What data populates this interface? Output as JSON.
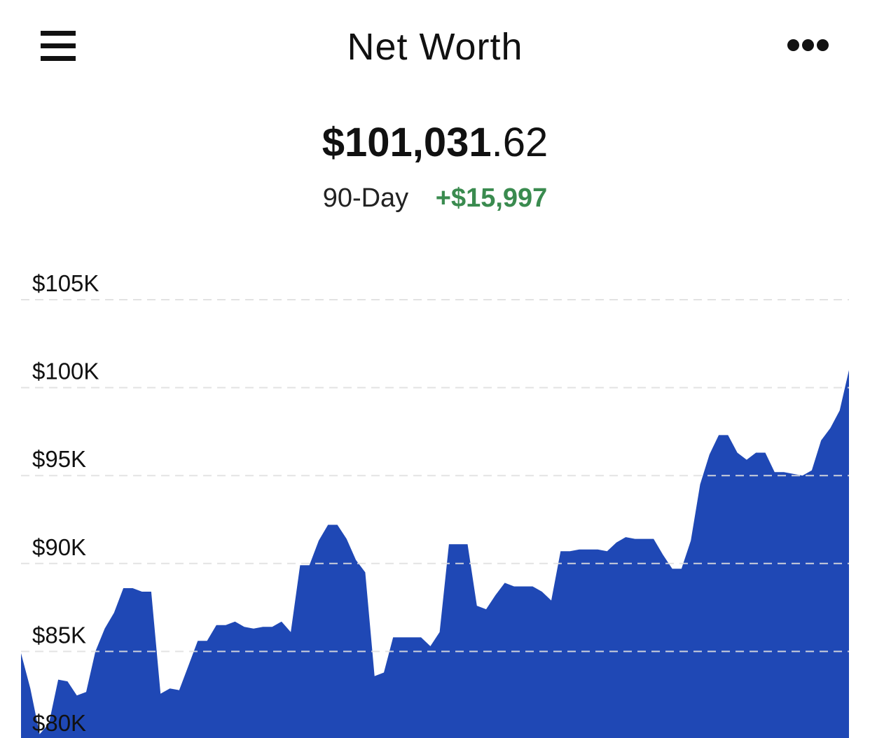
{
  "header": {
    "title": "Net Worth",
    "menu_icon": "hamburger-menu-icon",
    "more_icon": "more-options-icon"
  },
  "summary": {
    "balance_whole": "$101,031",
    "balance_cents": ".62",
    "period_label": "90-Day",
    "change": "+$15,997",
    "change_color": "#3a8b4f"
  },
  "colors": {
    "area_fill": "#1f48b5",
    "gridline": "#e0e0e0"
  },
  "chart_data": {
    "type": "area",
    "y_ticks": [
      80000,
      85000,
      90000,
      95000,
      100000,
      105000
    ],
    "y_tick_labels": [
      "$80K",
      "$85K",
      "$90K",
      "$95K",
      "$100K",
      "$105K"
    ],
    "ylim": [
      80000,
      105000
    ],
    "grid": true,
    "values": [
      84900,
      82900,
      80300,
      80900,
      83400,
      83300,
      82500,
      82700,
      85000,
      86300,
      87200,
      88600,
      88600,
      88400,
      88400,
      82600,
      82900,
      82800,
      84200,
      85600,
      85600,
      86500,
      86500,
      86700,
      86400,
      86300,
      86400,
      86400,
      86700,
      86100,
      89900,
      89900,
      91300,
      92200,
      92200,
      91400,
      90200,
      89500,
      83600,
      83800,
      85800,
      85800,
      85800,
      85800,
      85300,
      86100,
      91100,
      91100,
      91100,
      87600,
      87400,
      88200,
      88900,
      88700,
      88700,
      88700,
      88400,
      87900,
      90700,
      90700,
      90800,
      90800,
      90800,
      90700,
      91200,
      91500,
      91400,
      91400,
      91400,
      90500,
      89700,
      89700,
      91300,
      94500,
      96200,
      97300,
      97300,
      96300,
      95900,
      96300,
      96300,
      95200,
      95200,
      95100,
      95000,
      95300,
      97000,
      97700,
      98700,
      101000
    ]
  }
}
